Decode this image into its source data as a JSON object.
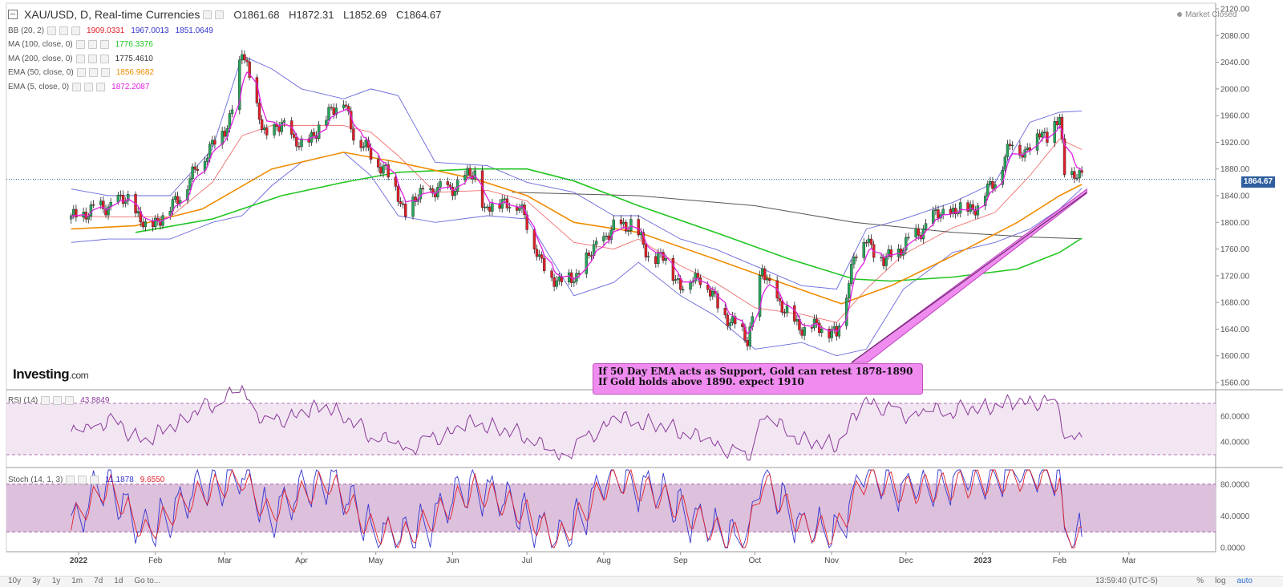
{
  "header": {
    "title": "XAU/USD, D, Real-time Currencies",
    "open": "O1861.68",
    "high": "H1872.31",
    "low": "L1852.69",
    "close": "C1864.67",
    "status": "Market Closed"
  },
  "indicators": [
    {
      "label": "BB (20, 2)",
      "values": [
        "1909.0331",
        "1967.0013",
        "1851.0649"
      ],
      "colors": [
        "#e0202a",
        "#3535d0",
        "#3535d0"
      ]
    },
    {
      "label": "MA (100, close, 0)",
      "values": [
        "1776.3376"
      ],
      "colors": [
        "#22c522"
      ]
    },
    {
      "label": "MA (200, close, 0)",
      "values": [
        "1775.4610"
      ],
      "colors": [
        "#333333"
      ]
    },
    {
      "label": "EMA (50, close, 0)",
      "values": [
        "1856.9682"
      ],
      "colors": [
        "#f08c00"
      ]
    },
    {
      "label": "EMA (5, close, 0)",
      "values": [
        "1872.2087"
      ],
      "colors": [
        "#e020e0"
      ]
    }
  ],
  "logo": {
    "brand": "Investing",
    "suffix": ".com"
  },
  "annotation": {
    "line1": "If 50 Day EMA acts as Support, Gold can retest 1878-1890",
    "line2": "If Gold holds above 1890. expect 1910"
  },
  "price_tag": "1864.67",
  "rsi_panel": {
    "label": "RSI (14)",
    "value": "43.8849"
  },
  "stoch_panel": {
    "label": "Stoch (14, 1, 3)",
    "k": "11.1878",
    "d": "9.6550"
  },
  "toolbar": {
    "timeframes": [
      "10y",
      "3y",
      "1y",
      "1m",
      "7d",
      "1d",
      "Go to..."
    ],
    "time": "13:59:40 (UTC-5)",
    "right": [
      "%",
      "log",
      "auto"
    ]
  },
  "colors": {
    "up": "#26a65b",
    "down": "#e0202a",
    "bb": "#3535d0",
    "bb_mid": "#f07070",
    "ma100": "#22c522",
    "ma200": "#555555",
    "ema50": "#f08c00",
    "ema5": "#e020e0",
    "rsi": "#8a3a9a",
    "stoch_k": "#3535d0",
    "stoch_d": "#e0202a",
    "trend": "#c040c0"
  },
  "chart_data": [
    {
      "type": "candlestick",
      "title": "XAU/USD, D, Real-time Currencies",
      "x_tick_labels": [
        "2022",
        "Feb",
        "Mar",
        "Apr",
        "May",
        "Jun",
        "Jul",
        "Aug",
        "Sep",
        "Oct",
        "Nov",
        "Dec",
        "2023",
        "Feb",
        "Mar"
      ],
      "y_tick_labels": [
        "2120.00",
        "2080.00",
        "2040.00",
        "2000.00",
        "1960.00",
        "1920.00",
        "1880.00",
        "1840.00",
        "1800.00",
        "1760.00",
        "1720.00",
        "1680.00",
        "1640.00",
        "1600.00",
        "1560.00"
      ],
      "ylim": [
        1540,
        2130
      ],
      "close_path": [
        [
          "2021-12-29",
          1805
        ],
        [
          "2022-01-04",
          1815
        ],
        [
          "2022-01-13",
          1825
        ],
        [
          "2022-01-21",
          1835
        ],
        [
          "2022-01-28",
          1790
        ],
        [
          "2022-02-07",
          1820
        ],
        [
          "2022-02-16",
          1870
        ],
        [
          "2022-02-24",
          1920
        ],
        [
          "2022-03-02",
          1940
        ],
        [
          "2022-03-08",
          2055
        ],
        [
          "2022-03-14",
          1975
        ],
        [
          "2022-03-18",
          1920
        ],
        [
          "2022-03-24",
          1955
        ],
        [
          "2022-03-29",
          1915
        ],
        [
          "2022-04-07",
          1930
        ],
        [
          "2022-04-12",
          1970
        ],
        [
          "2022-04-18",
          1980
        ],
        [
          "2022-04-22",
          1935
        ],
        [
          "2022-04-29",
          1900
        ],
        [
          "2022-05-05",
          1880
        ],
        [
          "2022-05-13",
          1815
        ],
        [
          "2022-05-20",
          1845
        ],
        [
          "2022-05-31",
          1850
        ],
        [
          "2022-06-10",
          1875
        ],
        [
          "2022-06-14",
          1815
        ],
        [
          "2022-06-21",
          1835
        ],
        [
          "2022-06-30",
          1815
        ],
        [
          "2022-07-06",
          1740
        ],
        [
          "2022-07-14",
          1710
        ],
        [
          "2022-07-21",
          1720
        ],
        [
          "2022-07-29",
          1765
        ],
        [
          "2022-08-05",
          1790
        ],
        [
          "2022-08-12",
          1800
        ],
        [
          "2022-08-19",
          1750
        ],
        [
          "2022-08-26",
          1745
        ],
        [
          "2022-09-01",
          1705
        ],
        [
          "2022-09-09",
          1720
        ],
        [
          "2022-09-16",
          1675
        ],
        [
          "2022-09-23",
          1645
        ],
        [
          "2022-09-28",
          1625
        ],
        [
          "2022-10-04",
          1725
        ],
        [
          "2022-10-13",
          1665
        ],
        [
          "2022-10-21",
          1640
        ],
        [
          "2022-10-28",
          1645
        ],
        [
          "2022-11-03",
          1630
        ],
        [
          "2022-11-10",
          1750
        ],
        [
          "2022-11-15",
          1775
        ],
        [
          "2022-11-22",
          1740
        ],
        [
          "2022-11-30",
          1765
        ],
        [
          "2022-12-05",
          1780
        ],
        [
          "2022-12-13",
          1810
        ],
        [
          "2022-12-20",
          1815
        ],
        [
          "2022-12-30",
          1825
        ],
        [
          "2023-01-06",
          1865
        ],
        [
          "2023-01-13",
          1920
        ],
        [
          "2023-01-18",
          1905
        ],
        [
          "2023-01-24",
          1935
        ],
        [
          "2023-01-27",
          1930
        ],
        [
          "2023-02-01",
          1955
        ],
        [
          "2023-02-03",
          1870
        ],
        [
          "2023-02-08",
          1875
        ],
        [
          "2023-02-10",
          1864.67
        ]
      ],
      "bb_upper": [
        [
          "2021-12-29",
          1850
        ],
        [
          "2022-01-13",
          1840
        ],
        [
          "2022-02-07",
          1840
        ],
        [
          "2022-02-24",
          1910
        ],
        [
          "2022-03-08",
          2050
        ],
        [
          "2022-03-20",
          2030
        ],
        [
          "2022-04-01",
          2000
        ],
        [
          "2022-04-18",
          1985
        ],
        [
          "2022-04-29",
          2000
        ],
        [
          "2022-05-10",
          1990
        ],
        [
          "2022-05-25",
          1890
        ],
        [
          "2022-06-15",
          1885
        ],
        [
          "2022-07-01",
          1860
        ],
        [
          "2022-07-20",
          1845
        ],
        [
          "2022-08-05",
          1810
        ],
        [
          "2022-08-15",
          1810
        ],
        [
          "2022-09-01",
          1775
        ],
        [
          "2022-09-15",
          1760
        ],
        [
          "2022-10-01",
          1735
        ],
        [
          "2022-10-20",
          1705
        ],
        [
          "2022-11-03",
          1700
        ],
        [
          "2022-11-15",
          1790
        ],
        [
          "2022-11-30",
          1805
        ],
        [
          "2022-12-20",
          1830
        ],
        [
          "2023-01-06",
          1860
        ],
        [
          "2023-01-20",
          1950
        ],
        [
          "2023-02-01",
          1965
        ],
        [
          "2023-02-10",
          1967
        ]
      ],
      "bb_lower": [
        [
          "2021-12-29",
          1770
        ],
        [
          "2022-01-13",
          1775
        ],
        [
          "2022-02-07",
          1775
        ],
        [
          "2022-02-24",
          1800
        ],
        [
          "2022-03-08",
          1810
        ],
        [
          "2022-03-20",
          1855
        ],
        [
          "2022-04-01",
          1890
        ],
        [
          "2022-04-18",
          1905
        ],
        [
          "2022-04-29",
          1870
        ],
        [
          "2022-05-10",
          1810
        ],
        [
          "2022-05-25",
          1800
        ],
        [
          "2022-06-15",
          1810
        ],
        [
          "2022-07-01",
          1805
        ],
        [
          "2022-07-20",
          1690
        ],
        [
          "2022-08-05",
          1710
        ],
        [
          "2022-08-15",
          1740
        ],
        [
          "2022-09-01",
          1690
        ],
        [
          "2022-09-15",
          1660
        ],
        [
          "2022-10-01",
          1610
        ],
        [
          "2022-10-20",
          1620
        ],
        [
          "2022-11-03",
          1600
        ],
        [
          "2022-11-15",
          1610
        ],
        [
          "2022-11-30",
          1700
        ],
        [
          "2022-12-20",
          1755
        ],
        [
          "2023-01-06",
          1770
        ],
        [
          "2023-01-20",
          1790
        ],
        [
          "2023-02-01",
          1820
        ],
        [
          "2023-02-10",
          1851
        ]
      ],
      "bb_mid": [
        [
          "2021-12-29",
          1810
        ],
        [
          "2022-01-13",
          1808
        ],
        [
          "2022-02-07",
          1808
        ],
        [
          "2022-02-24",
          1860
        ],
        [
          "2022-03-08",
          1930
        ],
        [
          "2022-03-20",
          1945
        ],
        [
          "2022-04-01",
          1945
        ],
        [
          "2022-04-18",
          1945
        ],
        [
          "2022-04-29",
          1935
        ],
        [
          "2022-05-10",
          1900
        ],
        [
          "2022-05-25",
          1845
        ],
        [
          "2022-06-15",
          1848
        ],
        [
          "2022-07-01",
          1832
        ],
        [
          "2022-07-20",
          1770
        ],
        [
          "2022-08-05",
          1760
        ],
        [
          "2022-08-15",
          1775
        ],
        [
          "2022-09-01",
          1735
        ],
        [
          "2022-09-15",
          1710
        ],
        [
          "2022-10-01",
          1672
        ],
        [
          "2022-10-20",
          1662
        ],
        [
          "2022-11-03",
          1650
        ],
        [
          "2022-11-15",
          1700
        ],
        [
          "2022-11-30",
          1752
        ],
        [
          "2022-12-20",
          1792
        ],
        [
          "2023-01-06",
          1815
        ],
        [
          "2023-01-20",
          1870
        ],
        [
          "2023-02-01",
          1925
        ],
        [
          "2023-02-10",
          1909
        ]
      ],
      "ma100": [
        [
          "2022-01-24",
          1785
        ],
        [
          "2022-02-24",
          1805
        ],
        [
          "2022-03-24",
          1840
        ],
        [
          "2022-04-18",
          1860
        ],
        [
          "2022-05-10",
          1875
        ],
        [
          "2022-06-10",
          1880
        ],
        [
          "2022-07-01",
          1880
        ],
        [
          "2022-07-20",
          1862
        ],
        [
          "2022-08-15",
          1825
        ],
        [
          "2022-09-15",
          1785
        ],
        [
          "2022-10-15",
          1745
        ],
        [
          "2022-11-10",
          1715
        ],
        [
          "2022-11-25",
          1712
        ],
        [
          "2022-12-20",
          1718
        ],
        [
          "2023-01-15",
          1730
        ],
        [
          "2023-02-01",
          1755
        ],
        [
          "2023-02-10",
          1776.34
        ]
      ],
      "ma200": [
        [
          "2022-06-25",
          1845
        ],
        [
          "2022-08-15",
          1840
        ],
        [
          "2022-10-01",
          1825
        ],
        [
          "2022-11-10",
          1800
        ],
        [
          "2022-12-20",
          1785
        ],
        [
          "2023-01-20",
          1778
        ],
        [
          "2023-02-10",
          1775.46
        ]
      ],
      "ema50": [
        [
          "2021-12-29",
          1790
        ],
        [
          "2022-01-24",
          1795
        ],
        [
          "2022-02-20",
          1820
        ],
        [
          "2022-03-20",
          1880
        ],
        [
          "2022-04-18",
          1905
        ],
        [
          "2022-05-10",
          1890
        ],
        [
          "2022-06-10",
          1865
        ],
        [
          "2022-07-01",
          1840
        ],
        [
          "2022-07-20",
          1800
        ],
        [
          "2022-08-15",
          1785
        ],
        [
          "2022-09-15",
          1745
        ],
        [
          "2022-10-15",
          1705
        ],
        [
          "2022-11-05",
          1678
        ],
        [
          "2022-11-25",
          1705
        ],
        [
          "2022-12-20",
          1750
        ],
        [
          "2023-01-15",
          1800
        ],
        [
          "2023-02-01",
          1840
        ],
        [
          "2023-02-10",
          1856.97
        ]
      ],
      "trendline": [
        [
          "2022-11-09",
          1590
        ],
        [
          "2023-02-12",
          1845
        ]
      ],
      "last_price": 1864.67
    },
    {
      "type": "line",
      "title": "RSI (14)",
      "ylim": [
        20,
        80
      ],
      "y_tick_labels": [
        "60.0000",
        "40.0000"
      ],
      "bands": [
        30,
        70
      ],
      "x": [
        "2021-12-29",
        "2022-01-13",
        "2022-01-28",
        "2022-02-16",
        "2022-03-08",
        "2022-03-18",
        "2022-04-12",
        "2022-04-29",
        "2022-05-13",
        "2022-06-10",
        "2022-06-30",
        "2022-07-14",
        "2022-08-05",
        "2022-08-26",
        "2022-09-16",
        "2022-09-28",
        "2022-10-04",
        "2022-10-21",
        "2022-11-03",
        "2022-11-15",
        "2022-11-30",
        "2022-12-20",
        "2023-01-13",
        "2023-01-24",
        "2023-02-01",
        "2023-02-03",
        "2023-02-10"
      ],
      "y": [
        45,
        58,
        40,
        62,
        80,
        55,
        68,
        45,
        35,
        55,
        45,
        28,
        58,
        52,
        38,
        28,
        60,
        40,
        38,
        72,
        62,
        64,
        70,
        72,
        68,
        45,
        43.88
      ]
    },
    {
      "type": "line",
      "title": "Stoch (14, 1, 3)",
      "ylim": [
        -5,
        100
      ],
      "y_tick_labels": [
        "80.0000",
        "40.0000",
        "0.0000"
      ],
      "bands": [
        20,
        80
      ],
      "x": [
        "2021-12-29",
        "2022-01-13",
        "2022-01-28",
        "2022-02-16",
        "2022-03-08",
        "2022-03-18",
        "2022-04-12",
        "2022-04-29",
        "2022-05-13",
        "2022-06-10",
        "2022-06-30",
        "2022-07-14",
        "2022-08-05",
        "2022-08-26",
        "2022-09-16",
        "2022-09-28",
        "2022-10-04",
        "2022-10-21",
        "2022-11-03",
        "2022-11-15",
        "2022-11-30",
        "2022-12-20",
        "2023-01-13",
        "2023-01-24",
        "2023-02-01",
        "2023-02-03",
        "2023-02-10"
      ],
      "k": [
        30,
        85,
        15,
        70,
        95,
        40,
        90,
        20,
        10,
        80,
        40,
        5,
        95,
        60,
        15,
        5,
        90,
        20,
        15,
        95,
        70,
        80,
        90,
        95,
        85,
        5,
        11.19
      ],
      "d": [
        35,
        80,
        20,
        65,
        90,
        45,
        85,
        25,
        15,
        75,
        45,
        10,
        90,
        62,
        20,
        10,
        85,
        25,
        20,
        90,
        72,
        78,
        88,
        92,
        85,
        10,
        9.66
      ]
    }
  ]
}
